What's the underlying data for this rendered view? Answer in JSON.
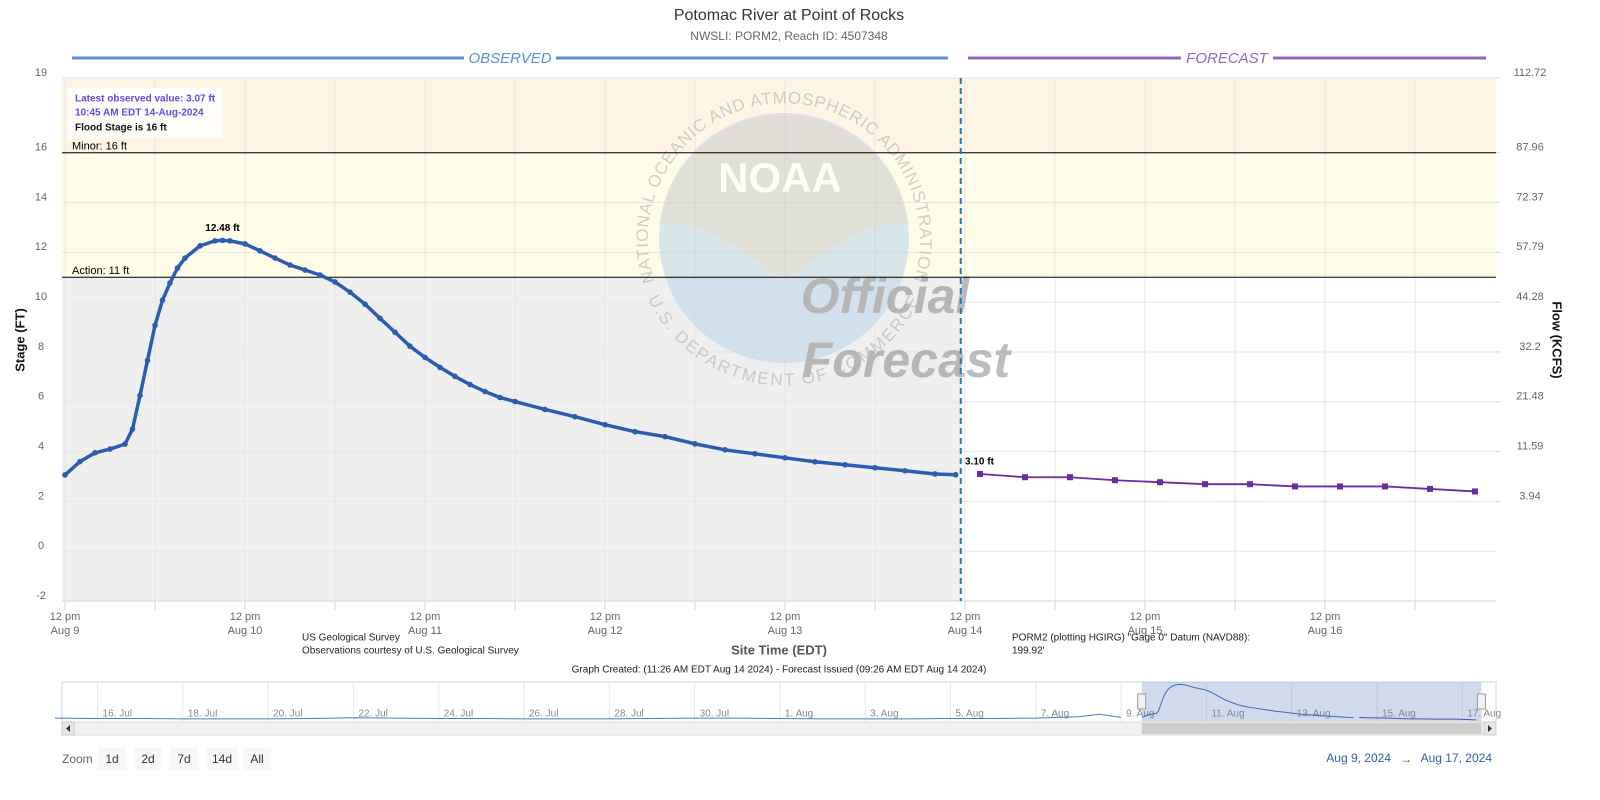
{
  "chart_data": {
    "type": "line",
    "title": "Potomac River at Point of Rocks",
    "subtitle": "NWSLI: PORM2, Reach ID: 4507348",
    "y_label": "Stage (FT)",
    "y2_label": "Flow (KCFS)",
    "x_label": "Site Time (EDT)",
    "xlim": [
      "2024-08-09T11:36",
      "2024-08-17T10:48"
    ],
    "ylim": [
      -2,
      19
    ],
    "yticks": [
      -2,
      0,
      2,
      4,
      6,
      8,
      10,
      12,
      14,
      16,
      19
    ],
    "flow_scale": {
      "stage": [
        19,
        16,
        14,
        12,
        10,
        8,
        6,
        4,
        2
      ],
      "flow": [
        112.72,
        87.96,
        72.37,
        57.79,
        44.28,
        32.2,
        21.48,
        11.59,
        3.94
      ]
    },
    "xticks": [
      {
        "value": "2024-08-09T12:00",
        "label": [
          "12 pm",
          "Aug 9"
        ]
      },
      {
        "value": "2024-08-10T12:00",
        "label": [
          "12 pm",
          "Aug 10"
        ]
      },
      {
        "value": "2024-08-11T12:00",
        "label": [
          "12 pm",
          "Aug 11"
        ]
      },
      {
        "value": "2024-08-12T12:00",
        "label": [
          "12 pm",
          "Aug 12"
        ]
      },
      {
        "value": "2024-08-13T12:00",
        "label": [
          "12 pm",
          "Aug 13"
        ]
      },
      {
        "value": "2024-08-14T12:00",
        "label": [
          "12 pm",
          "Aug 14"
        ]
      },
      {
        "value": "2024-08-15T12:00",
        "label": [
          "12 pm",
          "Aug 15"
        ]
      },
      {
        "value": "2024-08-16T12:00",
        "label": [
          "12 pm",
          "Aug 16"
        ]
      }
    ],
    "x_minor_ticks": [
      "2024-08-10T00:00",
      "2024-08-11T00:00",
      "2024-08-12T00:00",
      "2024-08-13T00:00",
      "2024-08-14T00:00",
      "2024-08-15T00:00",
      "2024-08-16T00:00",
      "2024-08-17T00:00"
    ],
    "grid": true,
    "now": "2024-08-14T11:26",
    "observed_background": "#efefef",
    "flood_levels": [
      {
        "label": "Action: 11 ft",
        "value": 11,
        "color": "#fffde8"
      },
      {
        "label": "Minor: 16 ft",
        "value": 16,
        "color": "#fff5e4"
      }
    ],
    "series": [
      {
        "name": "OBSERVED",
        "color": "#2b5cb0",
        "marker": "circle",
        "x": [
          "2024-08-09T12:00",
          "2024-08-09T14:00",
          "2024-08-09T16:00",
          "2024-08-09T18:00",
          "2024-08-09T20:00",
          "2024-08-09T21:00",
          "2024-08-09T22:00",
          "2024-08-09T23:00",
          "2024-08-10T00:00",
          "2024-08-10T01:00",
          "2024-08-10T02:00",
          "2024-08-10T03:00",
          "2024-08-10T04:00",
          "2024-08-10T06:00",
          "2024-08-10T08:00",
          "2024-08-10T09:00",
          "2024-08-10T10:00",
          "2024-08-10T12:00",
          "2024-08-10T14:00",
          "2024-08-10T16:00",
          "2024-08-10T18:00",
          "2024-08-10T20:00",
          "2024-08-10T22:00",
          "2024-08-11T00:00",
          "2024-08-11T02:00",
          "2024-08-11T04:00",
          "2024-08-11T06:00",
          "2024-08-11T08:00",
          "2024-08-11T10:00",
          "2024-08-11T12:00",
          "2024-08-11T14:00",
          "2024-08-11T16:00",
          "2024-08-11T18:00",
          "2024-08-11T20:00",
          "2024-08-11T22:00",
          "2024-08-12T00:00",
          "2024-08-12T04:00",
          "2024-08-12T08:00",
          "2024-08-12T12:00",
          "2024-08-12T16:00",
          "2024-08-12T20:00",
          "2024-08-13T00:00",
          "2024-08-13T04:00",
          "2024-08-13T08:00",
          "2024-08-13T12:00",
          "2024-08-13T16:00",
          "2024-08-13T20:00",
          "2024-08-14T00:00",
          "2024-08-14T04:00",
          "2024-08-14T08:00",
          "2024-08-14T10:45"
        ],
        "values": [
          3.06,
          3.6,
          3.95,
          4.1,
          4.3,
          4.9,
          6.25,
          7.66,
          9.07,
          10.08,
          10.77,
          11.37,
          11.77,
          12.26,
          12.46,
          12.48,
          12.46,
          12.34,
          12.06,
          11.77,
          11.49,
          11.29,
          11.09,
          10.81,
          10.4,
          9.92,
          9.35,
          8.79,
          8.23,
          7.78,
          7.38,
          7.02,
          6.69,
          6.41,
          6.17,
          6.01,
          5.69,
          5.4,
          5.08,
          4.8,
          4.6,
          4.31,
          4.07,
          3.91,
          3.75,
          3.59,
          3.47,
          3.35,
          3.23,
          3.1,
          3.07
        ]
      },
      {
        "name": "FORECAST",
        "color": "#6a2c9e",
        "marker": "square",
        "x": [
          "2024-08-14T14:00",
          "2024-08-14T20:00",
          "2024-08-15T02:00",
          "2024-08-15T08:00",
          "2024-08-15T14:00",
          "2024-08-15T20:00",
          "2024-08-16T02:00",
          "2024-08-16T08:00",
          "2024-08-16T14:00",
          "2024-08-16T20:00",
          "2024-08-17T02:00",
          "2024-08-17T08:00"
        ],
        "values": [
          3.1,
          2.97,
          2.97,
          2.85,
          2.77,
          2.69,
          2.69,
          2.6,
          2.6,
          2.6,
          2.5,
          2.4
        ]
      }
    ],
    "annotations": [
      {
        "x": "2024-08-10T09:00",
        "y": 12.48,
        "label": "12.48 ft"
      },
      {
        "x": "2024-08-14T14:00",
        "y": 3.1,
        "label": "3.10 ft"
      }
    ],
    "info_box": [
      "Latest observed value: 3.07 ft",
      "10:45 AM EDT 14-Aug-2024",
      "Flood Stage is 16 ft"
    ],
    "footnotes": {
      "source": [
        "US Geological Survey",
        "Observations courtesy of U.S. Geological Survey"
      ],
      "datum": [
        "PORM2 (plotting HGIRG) \"Gage 0\" Datum (NAVD88):",
        "199.92'"
      ],
      "created": "Graph Created: (11:26 AM EDT Aug 14 2024) - Forecast Issued (09:26 AM EDT Aug 14 2024)"
    },
    "watermark": {
      "logo": "NOAA",
      "ring_top": "NATIONAL OCEANIC AND ATMOSPHERIC ADMINISTRATION",
      "ring_bottom": "U.S. DEPARTMENT OF COMMERCE",
      "line1": "Official",
      "line2": "Forecast"
    },
    "navigator": {
      "xlim": [
        "2024-07-15T04:00",
        "2024-08-17T19:00"
      ],
      "ylim": [
        1.8,
        12.6
      ],
      "x": [
        "2024-07-15T00:00",
        "2024-07-16T00:00",
        "2024-07-17T00:00",
        "2024-07-18T00:00",
        "2024-07-19T00:00",
        "2024-07-20T00:00",
        "2024-07-21T00:00",
        "2024-07-22T00:00",
        "2024-07-23T00:00",
        "2024-07-24T00:00",
        "2024-07-25T00:00",
        "2024-07-26T00:00",
        "2024-07-27T00:00",
        "2024-07-28T00:00",
        "2024-07-29T00:00",
        "2024-07-30T00:00",
        "2024-07-31T00:00",
        "2024-08-01T00:00",
        "2024-08-02T00:00",
        "2024-08-03T00:00",
        "2024-08-04T00:00",
        "2024-08-05T00:00",
        "2024-08-06T00:00",
        "2024-08-07T00:00",
        "2024-08-08T00:00",
        "2024-08-08T12:00",
        "2024-08-09T00:00"
      ],
      "values": [
        2.9,
        2.8,
        2.8,
        2.7,
        2.7,
        2.7,
        2.8,
        3.0,
        2.9,
        2.8,
        2.8,
        2.7,
        2.7,
        2.7,
        2.8,
        2.9,
        2.9,
        2.8,
        2.7,
        2.7,
        2.7,
        2.8,
        2.8,
        2.9,
        3.3,
        4.0,
        3.1
      ],
      "ticks": [
        {
          "value": "2024-07-16T00:00",
          "label": "16. Jul"
        },
        {
          "value": "2024-07-18T00:00",
          "label": "18. Jul"
        },
        {
          "value": "2024-07-20T00:00",
          "label": "20. Jul"
        },
        {
          "value": "2024-07-22T00:00",
          "label": "22. Jul"
        },
        {
          "value": "2024-07-24T00:00",
          "label": "24. Jul"
        },
        {
          "value": "2024-07-26T00:00",
          "label": "26. Jul"
        },
        {
          "value": "2024-07-28T00:00",
          "label": "28. Jul"
        },
        {
          "value": "2024-07-30T00:00",
          "label": "30. Jul"
        },
        {
          "value": "2024-08-01T00:00",
          "label": "1. Aug"
        },
        {
          "value": "2024-08-03T00:00",
          "label": "3. Aug"
        },
        {
          "value": "2024-08-05T00:00",
          "label": "5. Aug"
        },
        {
          "value": "2024-08-07T00:00",
          "label": "7. Aug"
        },
        {
          "value": "2024-08-09T00:00",
          "label": "9. Aug"
        },
        {
          "value": "2024-08-11T00:00",
          "label": "11. Aug"
        },
        {
          "value": "2024-08-13T00:00",
          "label": "13. Aug"
        },
        {
          "value": "2024-08-15T00:00",
          "label": "15. Aug"
        },
        {
          "value": "2024-08-17T00:00",
          "label": "17. Aug"
        }
      ]
    },
    "range_selector": {
      "label": "Zoom",
      "buttons": [
        "1d",
        "2d",
        "7d",
        "14d",
        "All"
      ],
      "from": "Aug 9, 2024",
      "arrow": "→",
      "to": "Aug 17, 2024"
    }
  }
}
